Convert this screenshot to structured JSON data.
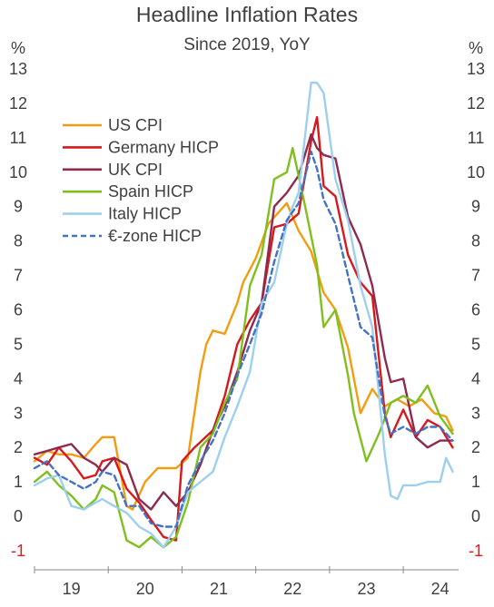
{
  "chart_data": {
    "type": "line",
    "title": "Headline Inflation Rates",
    "subtitle": "Since 2019, YoY",
    "y_unit_left": "%",
    "y_unit_right": "%",
    "ylim": [
      -1,
      13
    ],
    "yticks": [
      "-1",
      "0",
      "1",
      "2",
      "3",
      "4",
      "5",
      "6",
      "7",
      "8",
      "9",
      "10",
      "11",
      "12",
      "13"
    ],
    "x_range": [
      2019.0,
      2024.75
    ],
    "x_tick_labels": [
      "19",
      "20",
      "21",
      "22",
      "23",
      "24"
    ],
    "grid": false,
    "legend_position": "top-left",
    "series": [
      {
        "name": "US CPI",
        "color": "#f39c12",
        "dashed": false,
        "x": [
          2019.0,
          2019.17,
          2019.33,
          2019.5,
          2019.67,
          2019.83,
          2019.92,
          2020.08,
          2020.25,
          2020.33,
          2020.5,
          2020.67,
          2020.92,
          2021.08,
          2021.25,
          2021.33,
          2021.42,
          2021.58,
          2021.75,
          2021.83,
          2022.0,
          2022.17,
          2022.42,
          2022.58,
          2022.75,
          2022.92,
          2023.08,
          2023.25,
          2023.42,
          2023.58,
          2023.75,
          2023.92,
          2024.08,
          2024.25,
          2024.42,
          2024.58,
          2024.67
        ],
        "y": [
          1.6,
          1.9,
          1.8,
          1.8,
          1.7,
          2.1,
          2.3,
          2.3,
          0.3,
          0.2,
          1.0,
          1.4,
          1.4,
          1.7,
          4.2,
          5.0,
          5.4,
          5.3,
          6.2,
          6.8,
          7.5,
          8.5,
          9.1,
          8.3,
          7.7,
          6.5,
          6.0,
          4.9,
          3.0,
          3.7,
          3.2,
          3.4,
          3.2,
          3.4,
          3.0,
          2.9,
          2.5
        ]
      },
      {
        "name": "Germany HICP",
        "color": "#d7191c",
        "dashed": false,
        "x": [
          2019.0,
          2019.17,
          2019.33,
          2019.5,
          2019.67,
          2019.83,
          2019.92,
          2020.08,
          2020.25,
          2020.42,
          2020.58,
          2020.75,
          2020.92,
          2021.0,
          2021.17,
          2021.42,
          2021.58,
          2021.75,
          2021.92,
          2022.08,
          2022.25,
          2022.42,
          2022.58,
          2022.75,
          2022.83,
          2022.92,
          2023.08,
          2023.25,
          2023.42,
          2023.58,
          2023.75,
          2023.83,
          2024.0,
          2024.17,
          2024.33,
          2024.5,
          2024.67
        ],
        "y": [
          1.7,
          1.5,
          2.0,
          1.6,
          1.1,
          1.2,
          1.6,
          1.7,
          0.8,
          0.4,
          -0.1,
          -0.6,
          -0.7,
          1.6,
          2.0,
          2.5,
          3.5,
          5.0,
          5.7,
          6.2,
          8.4,
          8.5,
          8.8,
          10.9,
          11.6,
          9.6,
          9.3,
          7.6,
          6.8,
          6.4,
          3.0,
          2.3,
          3.1,
          2.3,
          2.8,
          2.6,
          2.0
        ]
      },
      {
        "name": "UK CPI",
        "color": "#8e2a4e",
        "dashed": false,
        "x": [
          2019.0,
          2019.17,
          2019.33,
          2019.5,
          2019.67,
          2019.83,
          2019.92,
          2020.08,
          2020.25,
          2020.42,
          2020.58,
          2020.75,
          2020.92,
          2021.08,
          2021.25,
          2021.42,
          2021.58,
          2021.75,
          2021.92,
          2022.08,
          2022.25,
          2022.42,
          2022.58,
          2022.75,
          2022.83,
          2022.92,
          2023.08,
          2023.25,
          2023.42,
          2023.58,
          2023.75,
          2023.83,
          2024.0,
          2024.17,
          2024.33,
          2024.5,
          2024.67
        ],
        "y": [
          1.8,
          1.9,
          2.0,
          2.1,
          1.7,
          1.5,
          1.3,
          1.7,
          1.5,
          0.5,
          0.2,
          0.7,
          0.3,
          0.7,
          1.5,
          2.5,
          3.2,
          4.2,
          5.4,
          6.2,
          9.0,
          9.4,
          9.9,
          11.1,
          10.7,
          10.5,
          10.4,
          8.7,
          7.9,
          6.7,
          4.6,
          3.9,
          4.0,
          2.3,
          2.0,
          2.2,
          2.2
        ]
      },
      {
        "name": "Spain HICP",
        "color": "#7fbf1e",
        "dashed": false,
        "x": [
          2019.0,
          2019.17,
          2019.33,
          2019.5,
          2019.67,
          2019.83,
          2019.92,
          2020.08,
          2020.25,
          2020.42,
          2020.58,
          2020.75,
          2020.92,
          2021.08,
          2021.25,
          2021.42,
          2021.58,
          2021.75,
          2021.92,
          2022.08,
          2022.25,
          2022.42,
          2022.5,
          2022.67,
          2022.83,
          2022.92,
          2023.08,
          2023.25,
          2023.33,
          2023.5,
          2023.67,
          2023.83,
          2024.0,
          2024.17,
          2024.33,
          2024.5,
          2024.67
        ],
        "y": [
          1.0,
          1.3,
          0.9,
          0.6,
          0.2,
          0.5,
          0.9,
          0.7,
          -0.7,
          -0.9,
          -0.6,
          -0.9,
          -0.6,
          0.4,
          2.0,
          2.4,
          3.3,
          4.0,
          6.7,
          7.6,
          9.8,
          10.0,
          10.7,
          9.0,
          7.3,
          5.5,
          6.0,
          4.1,
          3.0,
          1.6,
          2.4,
          3.3,
          3.5,
          3.3,
          3.8,
          2.9,
          2.4
        ]
      },
      {
        "name": "Italy HICP",
        "color": "#9dd0ee",
        "dashed": false,
        "x": [
          2019.0,
          2019.17,
          2019.33,
          2019.5,
          2019.67,
          2019.83,
          2019.92,
          2020.08,
          2020.25,
          2020.42,
          2020.58,
          2020.75,
          2020.92,
          2021.08,
          2021.25,
          2021.42,
          2021.58,
          2021.75,
          2021.92,
          2022.08,
          2022.25,
          2022.42,
          2022.5,
          2022.58,
          2022.75,
          2022.83,
          2022.92,
          2023.08,
          2023.25,
          2023.42,
          2023.58,
          2023.75,
          2023.83,
          2023.92,
          2024.0,
          2024.17,
          2024.33,
          2024.5,
          2024.58,
          2024.67
        ],
        "y": [
          0.9,
          1.1,
          1.2,
          0.3,
          0.2,
          0.4,
          0.5,
          0.3,
          0.1,
          -0.3,
          -0.5,
          -0.9,
          -0.3,
          0.7,
          1.0,
          1.3,
          2.3,
          3.2,
          4.2,
          6.2,
          6.8,
          8.5,
          9.0,
          9.4,
          12.6,
          12.6,
          12.3,
          9.8,
          8.6,
          6.7,
          5.5,
          1.8,
          0.6,
          0.5,
          0.9,
          0.9,
          1.0,
          1.0,
          1.7,
          1.3
        ]
      },
      {
        "name": "€-zone HICP",
        "color": "#4472c4",
        "dashed": true,
        "x": [
          2019.0,
          2019.17,
          2019.33,
          2019.5,
          2019.67,
          2019.83,
          2019.92,
          2020.08,
          2020.25,
          2020.42,
          2020.58,
          2020.75,
          2020.92,
          2021.08,
          2021.25,
          2021.42,
          2021.58,
          2021.75,
          2021.92,
          2022.08,
          2022.25,
          2022.42,
          2022.58,
          2022.75,
          2022.83,
          2022.92,
          2023.08,
          2023.25,
          2023.42,
          2023.58,
          2023.75,
          2023.83,
          2024.0,
          2024.17,
          2024.33,
          2024.5,
          2024.67
        ],
        "y": [
          1.4,
          1.6,
          1.2,
          1.0,
          0.8,
          1.0,
          1.3,
          1.2,
          0.3,
          0.3,
          -0.2,
          -0.3,
          -0.3,
          0.9,
          1.6,
          2.2,
          3.0,
          4.1,
          5.0,
          5.9,
          7.4,
          8.6,
          9.1,
          10.6,
          10.1,
          9.2,
          8.5,
          7.0,
          5.5,
          5.2,
          2.9,
          2.4,
          2.6,
          2.4,
          2.6,
          2.6,
          2.2
        ]
      }
    ]
  }
}
